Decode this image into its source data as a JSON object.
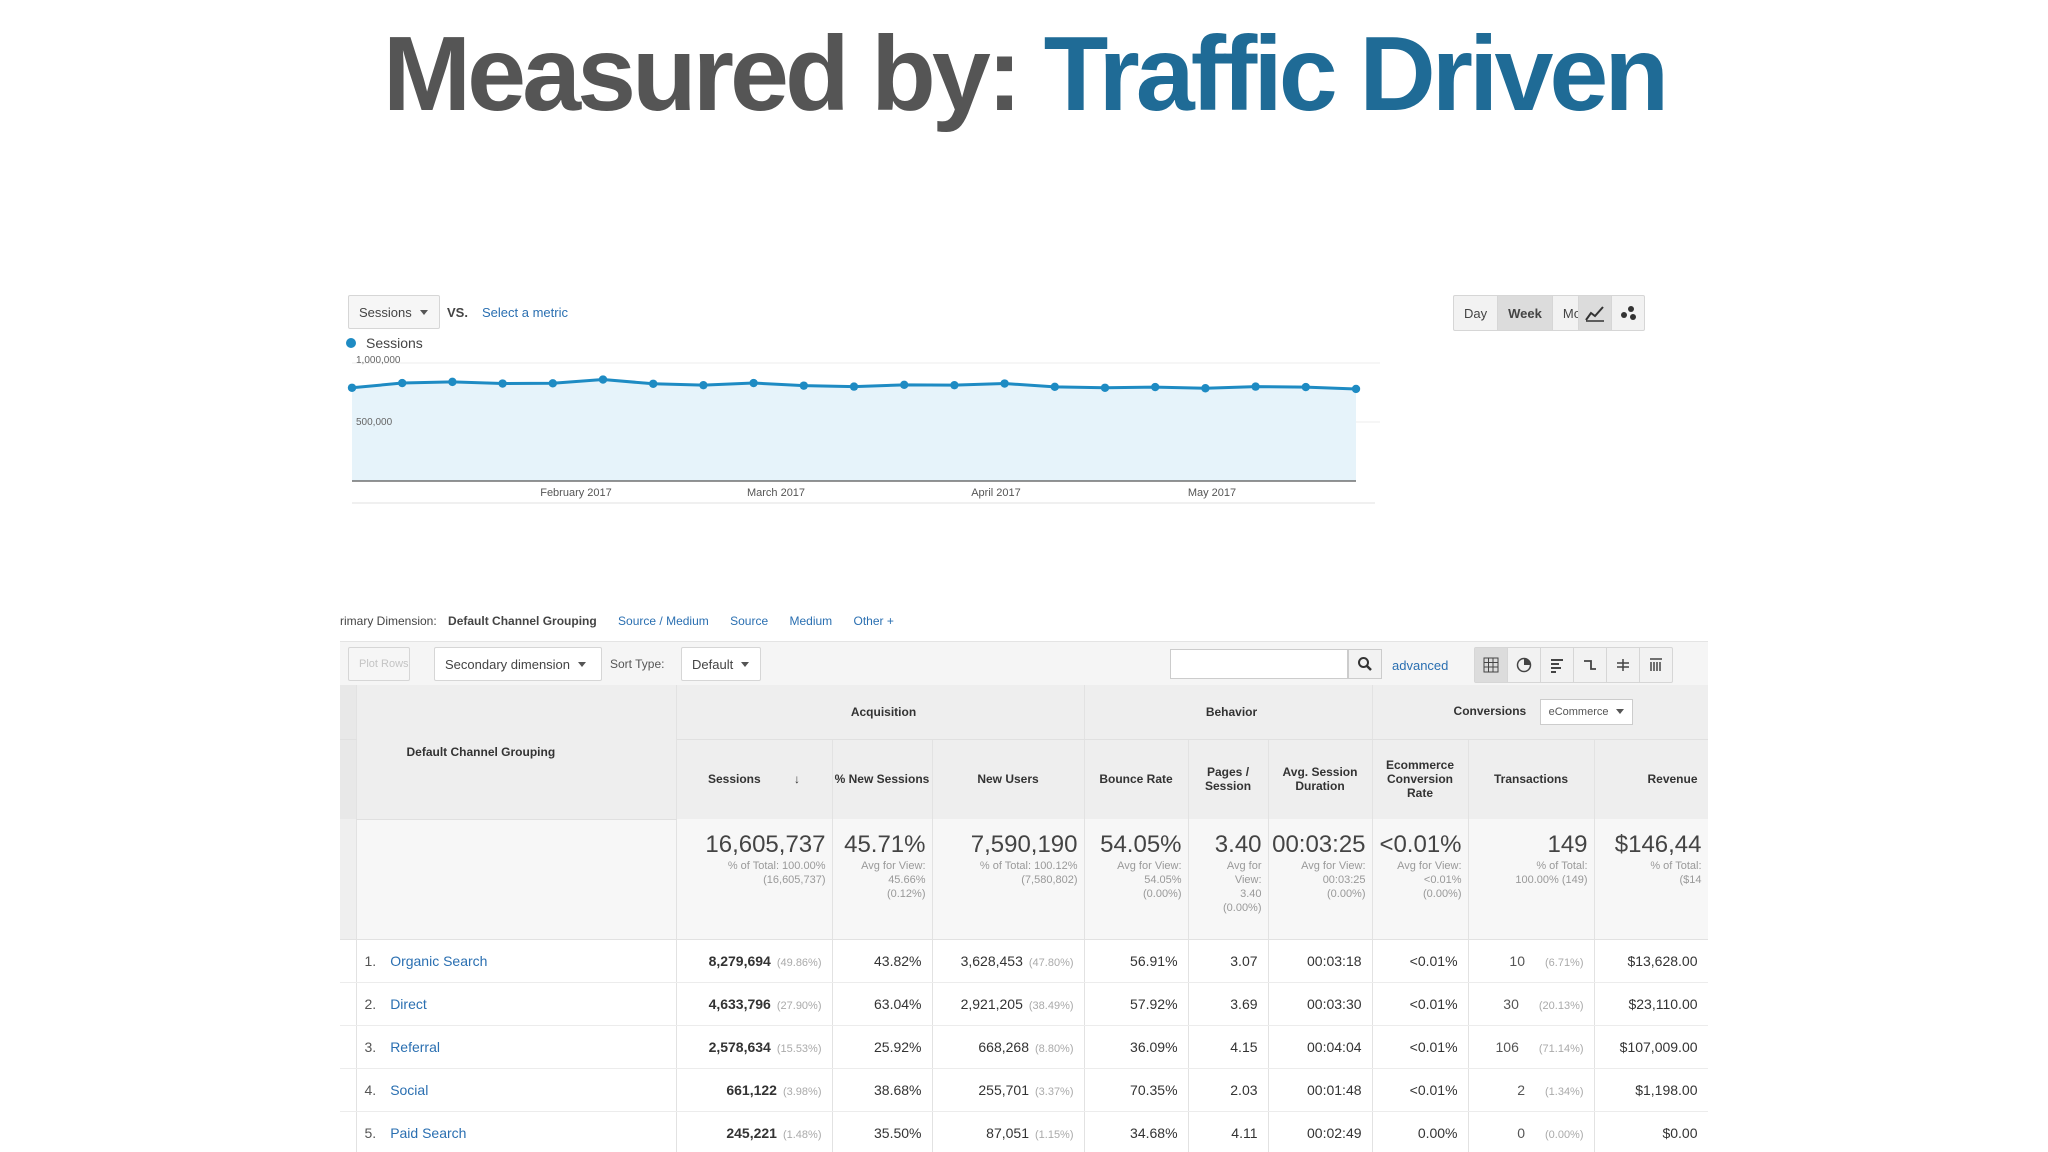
{
  "slide": {
    "title_plain": "Measured by: ",
    "title_accent": "Traffic Driven",
    "colors": {
      "plain": "#555555",
      "accent": "#1f6b96"
    }
  },
  "controls": {
    "metric_select": "Sessions",
    "vs_label": "VS.",
    "select_metric_link": "Select a metric",
    "granularity": [
      "Day",
      "Week",
      "Month"
    ],
    "granularity_active": "Week",
    "line_chart_icon": "line-chart-icon",
    "motion_chart_icon": "motion-chart-icon"
  },
  "chart_data": {
    "type": "line",
    "series": [
      {
        "name": "Sessions",
        "values": [
          790000,
          830000,
          840000,
          826000,
          828000,
          860000,
          824000,
          812000,
          830000,
          808000,
          800000,
          815000,
          812000,
          826000,
          798000,
          790000,
          796000,
          786000,
          800000,
          796000,
          780000
        ]
      }
    ],
    "x_ticks": [
      "February 2017",
      "March 2017",
      "April 2017",
      "May 2017"
    ],
    "y_ticks": [
      "1,000,000",
      "500,000"
    ],
    "ylim": [
      0,
      1000000
    ],
    "legend": "top-left",
    "color": "#1e8bc3",
    "fill": "#e6f3fa"
  },
  "dimension_bar": {
    "label": "rimary Dimension:",
    "active": "Default Channel Grouping",
    "options": [
      "Source / Medium",
      "Source",
      "Medium",
      "Other +"
    ]
  },
  "toolbar": {
    "plot_rows": "Plot Rows",
    "secondary_dimension": "Secondary dimension",
    "sort_type_label": "Sort Type:",
    "sort_type_value": "Default",
    "search_placeholder": "",
    "advanced": "advanced",
    "view_icons": [
      "data-table-icon",
      "pie-icon",
      "performance-icon",
      "comparison-icon",
      "term-cloud-icon",
      "pivot-icon"
    ]
  },
  "table": {
    "dimension_header": "Default Channel Grouping",
    "groups": {
      "acquisition": "Acquisition",
      "behavior": "Behavior",
      "conversions": "Conversions",
      "conversions_select": "eCommerce"
    },
    "columns": [
      "Sessions",
      "% New Sessions",
      "New Users",
      "Bounce Rate",
      "Pages / Session",
      "Avg. Session Duration",
      "Ecommerce Conversion Rate",
      "Transactions",
      "Revenue"
    ],
    "totals": [
      {
        "value": "16,605,737",
        "sub": [
          "% of Total: 100.00%",
          "(16,605,737)"
        ]
      },
      {
        "value": "45.71%",
        "sub": [
          "Avg for View:",
          "45.66%",
          "(0.12%)"
        ]
      },
      {
        "value": "7,590,190",
        "sub": [
          "% of Total: 100.12%",
          "(7,580,802)"
        ]
      },
      {
        "value": "54.05%",
        "sub": [
          "Avg for View:",
          "54.05%",
          "(0.00%)"
        ]
      },
      {
        "value": "3.40",
        "sub": [
          "Avg for",
          "View:",
          "3.40",
          "(0.00%)"
        ]
      },
      {
        "value": "00:03:25",
        "sub": [
          "Avg for View:",
          "00:03:25",
          "(0.00%)"
        ]
      },
      {
        "value": "<0.01%",
        "sub": [
          "Avg for View:",
          "<0.01%",
          "(0.00%)"
        ]
      },
      {
        "value": "149",
        "sub": [
          "% of Total:",
          "100.00% (149)"
        ]
      },
      {
        "value": "$146,44",
        "sub": [
          "% of Total:",
          "($14"
        ]
      }
    ],
    "rows": [
      {
        "idx": "1.",
        "name": "Organic Search",
        "sessions": "8,279,694",
        "sessions_pct": "(49.86%)",
        "new_sessions": "43.82%",
        "new_users": "3,628,453",
        "new_users_pct": "(47.80%)",
        "bounce": "56.91%",
        "pages": "3.07",
        "duration": "00:03:18",
        "conv": "<0.01%",
        "trans": "10",
        "trans_pct": "(6.71%)",
        "revenue": "$13,628.00"
      },
      {
        "idx": "2.",
        "name": "Direct",
        "sessions": "4,633,796",
        "sessions_pct": "(27.90%)",
        "new_sessions": "63.04%",
        "new_users": "2,921,205",
        "new_users_pct": "(38.49%)",
        "bounce": "57.92%",
        "pages": "3.69",
        "duration": "00:03:30",
        "conv": "<0.01%",
        "trans": "30",
        "trans_pct": "(20.13%)",
        "revenue": "$23,110.00"
      },
      {
        "idx": "3.",
        "name": "Referral",
        "sessions": "2,578,634",
        "sessions_pct": "(15.53%)",
        "new_sessions": "25.92%",
        "new_users": "668,268",
        "new_users_pct": "(8.80%)",
        "bounce": "36.09%",
        "pages": "4.15",
        "duration": "00:04:04",
        "conv": "<0.01%",
        "trans": "106",
        "trans_pct": "(71.14%)",
        "revenue": "$107,009.00"
      },
      {
        "idx": "4.",
        "name": "Social",
        "sessions": "661,122",
        "sessions_pct": "(3.98%)",
        "new_sessions": "38.68%",
        "new_users": "255,701",
        "new_users_pct": "(3.37%)",
        "bounce": "70.35%",
        "pages": "2.03",
        "duration": "00:01:48",
        "conv": "<0.01%",
        "trans": "2",
        "trans_pct": "(1.34%)",
        "revenue": "$1,198.00"
      },
      {
        "idx": "5.",
        "name": "Paid Search",
        "sessions": "245,221",
        "sessions_pct": "(1.48%)",
        "new_sessions": "35.50%",
        "new_users": "87,051",
        "new_users_pct": "(1.15%)",
        "bounce": "34.68%",
        "pages": "4.11",
        "duration": "00:02:49",
        "conv": "0.00%",
        "trans": "0",
        "trans_pct": "(0.00%)",
        "revenue": "$0.00"
      }
    ]
  }
}
